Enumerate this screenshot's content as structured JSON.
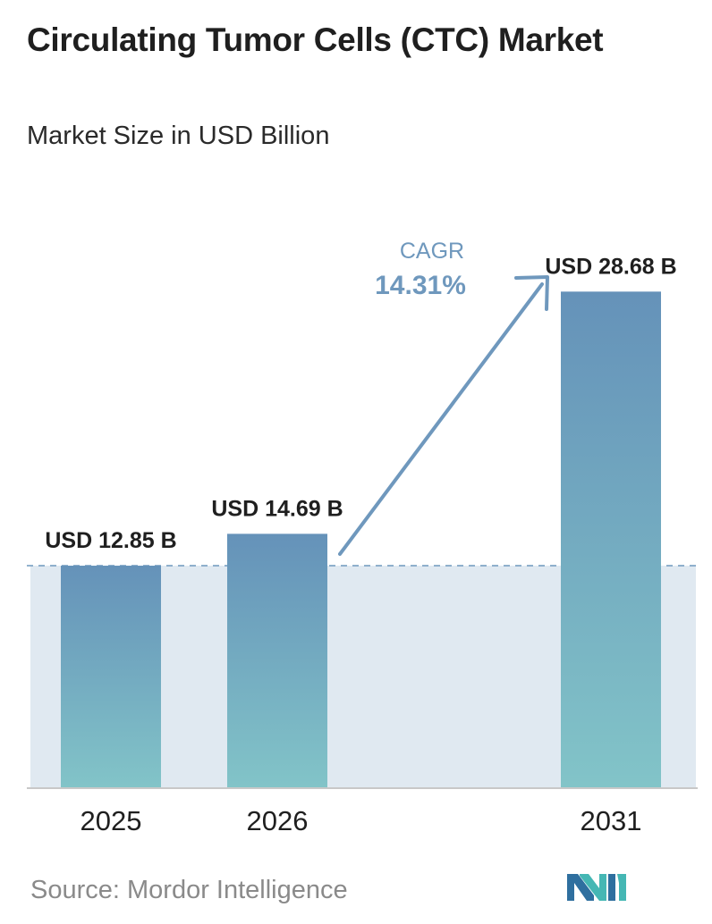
{
  "title": "Circulating Tumor Cells (CTC) Market",
  "subtitle": "Market Size in USD Billion",
  "source": "Source:  Mordor Intelligence",
  "logo_icon": "mordor-intelligence-logo",
  "chart_data": {
    "type": "bar",
    "categories": [
      "2025",
      "2026",
      "2031"
    ],
    "values": [
      12.85,
      14.69,
      28.68
    ],
    "value_labels": [
      "USD 12.85 B",
      "USD 14.69 B",
      "USD 28.68 B"
    ],
    "ylim": [
      0,
      32
    ],
    "grid": false,
    "cagr": {
      "label": "CAGR",
      "value": "14.31%"
    },
    "colors": {
      "bar_top": "#6592b9",
      "bar_bottom": "#82c4c8",
      "shaded_area": "#e0e9f1",
      "reference_line": "#6f98bd",
      "arrow": "#6f98bd",
      "cagr_text": "#6f98bd",
      "axis": "#c8c8c8"
    }
  }
}
